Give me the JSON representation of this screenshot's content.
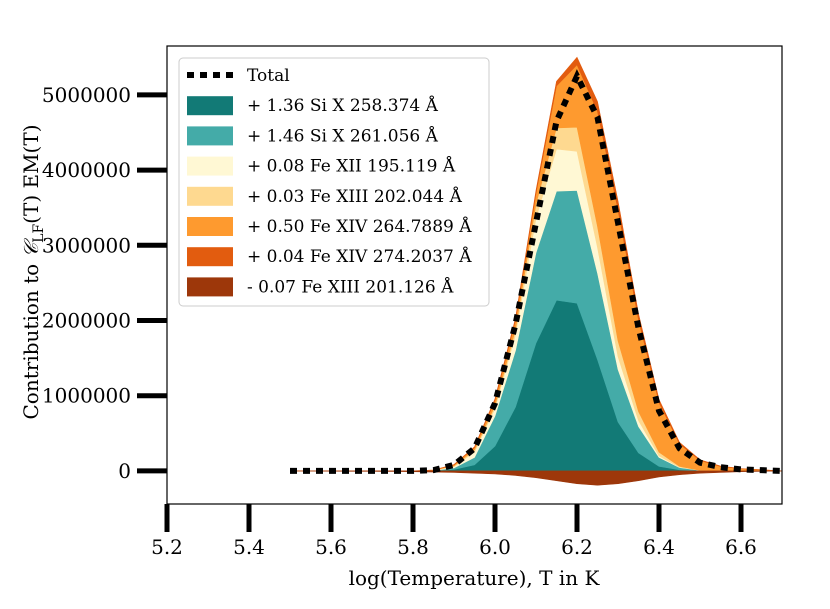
{
  "chart_data": {
    "type": "area",
    "title": "",
    "xlabel": "log(Temperature), T in K",
    "ylabel_prefix": "Contribution to ",
    "ylabel_symbol": "𝒞",
    "ylabel_subscript": "LF",
    "ylabel_suffix": "(T) EM(T)",
    "xlim": [
      5.2,
      6.7
    ],
    "ylim": [
      -440000,
      5650000
    ],
    "xticks": [
      5.2,
      5.4,
      5.6,
      5.8,
      6.0,
      6.2,
      6.4,
      6.6
    ],
    "xtick_labels": [
      "5.2",
      "5.4",
      "5.6",
      "5.8",
      "6.0",
      "6.2",
      "6.4",
      "6.6"
    ],
    "yticks": [
      0,
      1000000,
      2000000,
      3000000,
      4000000,
      5000000
    ],
    "ytick_labels": [
      "0",
      "1000000",
      "2000000",
      "3000000",
      "4000000",
      "5000000"
    ],
    "grid": false,
    "legend_position": "upper-left",
    "x": [
      5.5,
      5.55,
      5.6,
      5.65,
      5.7,
      5.75,
      5.8,
      5.85,
      5.9,
      5.95,
      6.0,
      6.05,
      6.1,
      6.15,
      6.2,
      6.25,
      6.3,
      6.35,
      6.4,
      6.45,
      6.5,
      6.55,
      6.6,
      6.65,
      6.7
    ],
    "total": {
      "name": "Total",
      "color": "#000000",
      "values": [
        0,
        0,
        0,
        0,
        0,
        0,
        0,
        10000,
        80000,
        300000,
        900000,
        1950000,
        3300000,
        4650000,
        5250000,
        4700000,
        3300000,
        1900000,
        800000,
        300000,
        110000,
        50000,
        20000,
        10000,
        0
      ]
    },
    "series": [
      {
        "name": "+ 1.36 Si X 258.374 Å",
        "color": "#127a76",
        "values": [
          0,
          0,
          0,
          0,
          0,
          0,
          0,
          3000,
          20000,
          80000,
          330000,
          850000,
          1700000,
          2270000,
          2230000,
          1480000,
          650000,
          240000,
          60000,
          15000,
          3000,
          0,
          0,
          0,
          0
        ]
      },
      {
        "name": "+ 1.46 Si X 261.056 Å",
        "color": "#44aba8",
        "values": [
          0,
          0,
          0,
          0,
          0,
          0,
          0,
          3000,
          20000,
          100000,
          400000,
          750000,
          1200000,
          1450000,
          1500000,
          1150000,
          700000,
          350000,
          120000,
          30000,
          5000,
          0,
          0,
          0,
          0
        ]
      },
      {
        "name": "+ 0.08 Fe XII 195.119 Å",
        "color": "#fff8d4",
        "values": [
          0,
          0,
          0,
          0,
          0,
          0,
          0,
          2000,
          15000,
          70000,
          100000,
          210000,
          460000,
          560000,
          520000,
          340000,
          170000,
          80000,
          20000,
          5000,
          0,
          0,
          0,
          0,
          0
        ]
      },
      {
        "name": "+ 0.03 Fe XIII 202.044 Å",
        "color": "#fed990",
        "values": [
          0,
          0,
          0,
          0,
          0,
          0,
          0,
          1000,
          10000,
          30000,
          40000,
          70000,
          190000,
          280000,
          320000,
          280000,
          210000,
          120000,
          50000,
          10000,
          0,
          0,
          0,
          0,
          0
        ]
      },
      {
        "name": "+ 0.50 Fe XIV 264.7889 Å",
        "color": "#fe9a2f",
        "values": [
          0,
          0,
          0,
          0,
          0,
          0,
          0,
          2000,
          15000,
          30000,
          70000,
          120000,
          140000,
          560000,
          830000,
          1530000,
          1740000,
          1220000,
          660000,
          300000,
          130000,
          60000,
          30000,
          15000,
          0
        ]
      },
      {
        "name": "+ 0.04 Fe XIV 274.2037 Å",
        "color": "#e25c0f",
        "values": [
          0,
          0,
          0,
          0,
          0,
          0,
          0,
          1000,
          5000,
          10000,
          20000,
          30000,
          40000,
          60000,
          100000,
          130000,
          120000,
          80000,
          40000,
          20000,
          10000,
          5000,
          2000,
          0,
          0
        ]
      },
      {
        "name": "- 0.07 Fe XIII 201.126 Å",
        "color": "#9d370a",
        "values": [
          0,
          -2000,
          -4000,
          -5000,
          -6000,
          -8000,
          -10000,
          -15000,
          -20000,
          -30000,
          -40000,
          -60000,
          -90000,
          -130000,
          -170000,
          -190000,
          -170000,
          -130000,
          -80000,
          -50000,
          -30000,
          -20000,
          -10000,
          -5000,
          0
        ]
      }
    ]
  }
}
